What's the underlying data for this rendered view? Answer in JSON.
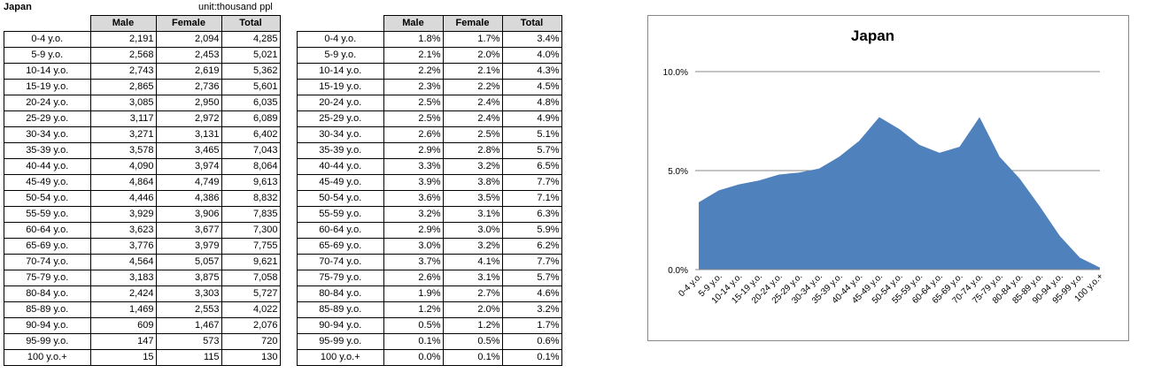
{
  "sheet": {
    "title": "Japan",
    "unit": "unit:thousand ppl"
  },
  "headers": [
    "Male",
    "Female",
    "Total"
  ],
  "rows": [
    {
      "label": "0-4 y.o.",
      "male": "2,191",
      "female": "2,094",
      "total": "4,285",
      "male_pct": "1.8%",
      "female_pct": "1.7%",
      "total_pct": "3.4%"
    },
    {
      "label": "5-9 y.o.",
      "male": "2,568",
      "female": "2,453",
      "total": "5,021",
      "male_pct": "2.1%",
      "female_pct": "2.0%",
      "total_pct": "4.0%"
    },
    {
      "label": "10-14 y.o.",
      "male": "2,743",
      "female": "2,619",
      "total": "5,362",
      "male_pct": "2.2%",
      "female_pct": "2.1%",
      "total_pct": "4.3%"
    },
    {
      "label": "15-19 y.o.",
      "male": "2,865",
      "female": "2,736",
      "total": "5,601",
      "male_pct": "2.3%",
      "female_pct": "2.2%",
      "total_pct": "4.5%"
    },
    {
      "label": "20-24 y.o.",
      "male": "3,085",
      "female": "2,950",
      "total": "6,035",
      "male_pct": "2.5%",
      "female_pct": "2.4%",
      "total_pct": "4.8%"
    },
    {
      "label": "25-29 y.o.",
      "male": "3,117",
      "female": "2,972",
      "total": "6,089",
      "male_pct": "2.5%",
      "female_pct": "2.4%",
      "total_pct": "4.9%"
    },
    {
      "label": "30-34 y.o.",
      "male": "3,271",
      "female": "3,131",
      "total": "6,402",
      "male_pct": "2.6%",
      "female_pct": "2.5%",
      "total_pct": "5.1%"
    },
    {
      "label": "35-39 y.o.",
      "male": "3,578",
      "female": "3,465",
      "total": "7,043",
      "male_pct": "2.9%",
      "female_pct": "2.8%",
      "total_pct": "5.7%"
    },
    {
      "label": "40-44 y.o.",
      "male": "4,090",
      "female": "3,974",
      "total": "8,064",
      "male_pct": "3.3%",
      "female_pct": "3.2%",
      "total_pct": "6.5%"
    },
    {
      "label": "45-49 y.o.",
      "male": "4,864",
      "female": "4,749",
      "total": "9,613",
      "male_pct": "3.9%",
      "female_pct": "3.8%",
      "total_pct": "7.7%"
    },
    {
      "label": "50-54 y.o.",
      "male": "4,446",
      "female": "4,386",
      "total": "8,832",
      "male_pct": "3.6%",
      "female_pct": "3.5%",
      "total_pct": "7.1%"
    },
    {
      "label": "55-59 y.o.",
      "male": "3,929",
      "female": "3,906",
      "total": "7,835",
      "male_pct": "3.2%",
      "female_pct": "3.1%",
      "total_pct": "6.3%"
    },
    {
      "label": "60-64 y.o.",
      "male": "3,623",
      "female": "3,677",
      "total": "7,300",
      "male_pct": "2.9%",
      "female_pct": "3.0%",
      "total_pct": "5.9%"
    },
    {
      "label": "65-69 y.o.",
      "male": "3,776",
      "female": "3,979",
      "total": "7,755",
      "male_pct": "3.0%",
      "female_pct": "3.2%",
      "total_pct": "6.2%"
    },
    {
      "label": "70-74 y.o.",
      "male": "4,564",
      "female": "5,057",
      "total": "9,621",
      "male_pct": "3.7%",
      "female_pct": "4.1%",
      "total_pct": "7.7%"
    },
    {
      "label": "75-79 y.o.",
      "male": "3,183",
      "female": "3,875",
      "total": "7,058",
      "male_pct": "2.6%",
      "female_pct": "3.1%",
      "total_pct": "5.7%"
    },
    {
      "label": "80-84 y.o.",
      "male": "2,424",
      "female": "3,303",
      "total": "5,727",
      "male_pct": "1.9%",
      "female_pct": "2.7%",
      "total_pct": "4.6%"
    },
    {
      "label": "85-89 y.o.",
      "male": "1,469",
      "female": "2,553",
      "total": "4,022",
      "male_pct": "1.2%",
      "female_pct": "2.0%",
      "total_pct": "3.2%"
    },
    {
      "label": "90-94 y.o.",
      "male": "609",
      "female": "1,467",
      "total": "2,076",
      "male_pct": "0.5%",
      "female_pct": "1.2%",
      "total_pct": "1.7%"
    },
    {
      "label": "95-99 y.o.",
      "male": "147",
      "female": "573",
      "total": "720",
      "male_pct": "0.1%",
      "female_pct": "0.5%",
      "total_pct": "0.6%"
    },
    {
      "label": "100 y.o.+",
      "male": "15",
      "female": "115",
      "total": "130",
      "male_pct": "0.0%",
      "female_pct": "0.1%",
      "total_pct": "0.1%"
    }
  ],
  "chart_data": {
    "type": "area",
    "title": "Japan",
    "xlabel": "",
    "ylabel": "",
    "categories": [
      "0-4 y.o.",
      "5-9 y.o.",
      "10-14 y.o.",
      "15-19 y.o.",
      "20-24 y.o.",
      "25-29 y.o.",
      "30-34 y.o.",
      "35-39 y.o.",
      "40-44 y.o.",
      "45-49 y.o.",
      "50-54 y.o.",
      "55-59 y.o.",
      "60-64 y.o.",
      "65-69 y.o.",
      "70-74 y.o.",
      "75-79 y.o.",
      "80-84 y.o.",
      "85-89 y.o.",
      "90-94 y.o.",
      "95-99 y.o.",
      "100 y.o.+"
    ],
    "series": [
      {
        "name": "Total",
        "values": [
          3.4,
          4.0,
          4.3,
          4.5,
          4.8,
          4.9,
          5.1,
          5.7,
          6.5,
          7.7,
          7.1,
          6.3,
          5.9,
          6.2,
          7.7,
          5.7,
          4.6,
          3.2,
          1.7,
          0.6,
          0.1
        ]
      }
    ],
    "ylim": [
      0,
      10
    ],
    "yticks": [
      0,
      5,
      10
    ],
    "ytick_labels": [
      "0.0%",
      "5.0%",
      "10.0%"
    ],
    "grid": true,
    "legend": "none",
    "fill_color": "#4f81bd"
  }
}
